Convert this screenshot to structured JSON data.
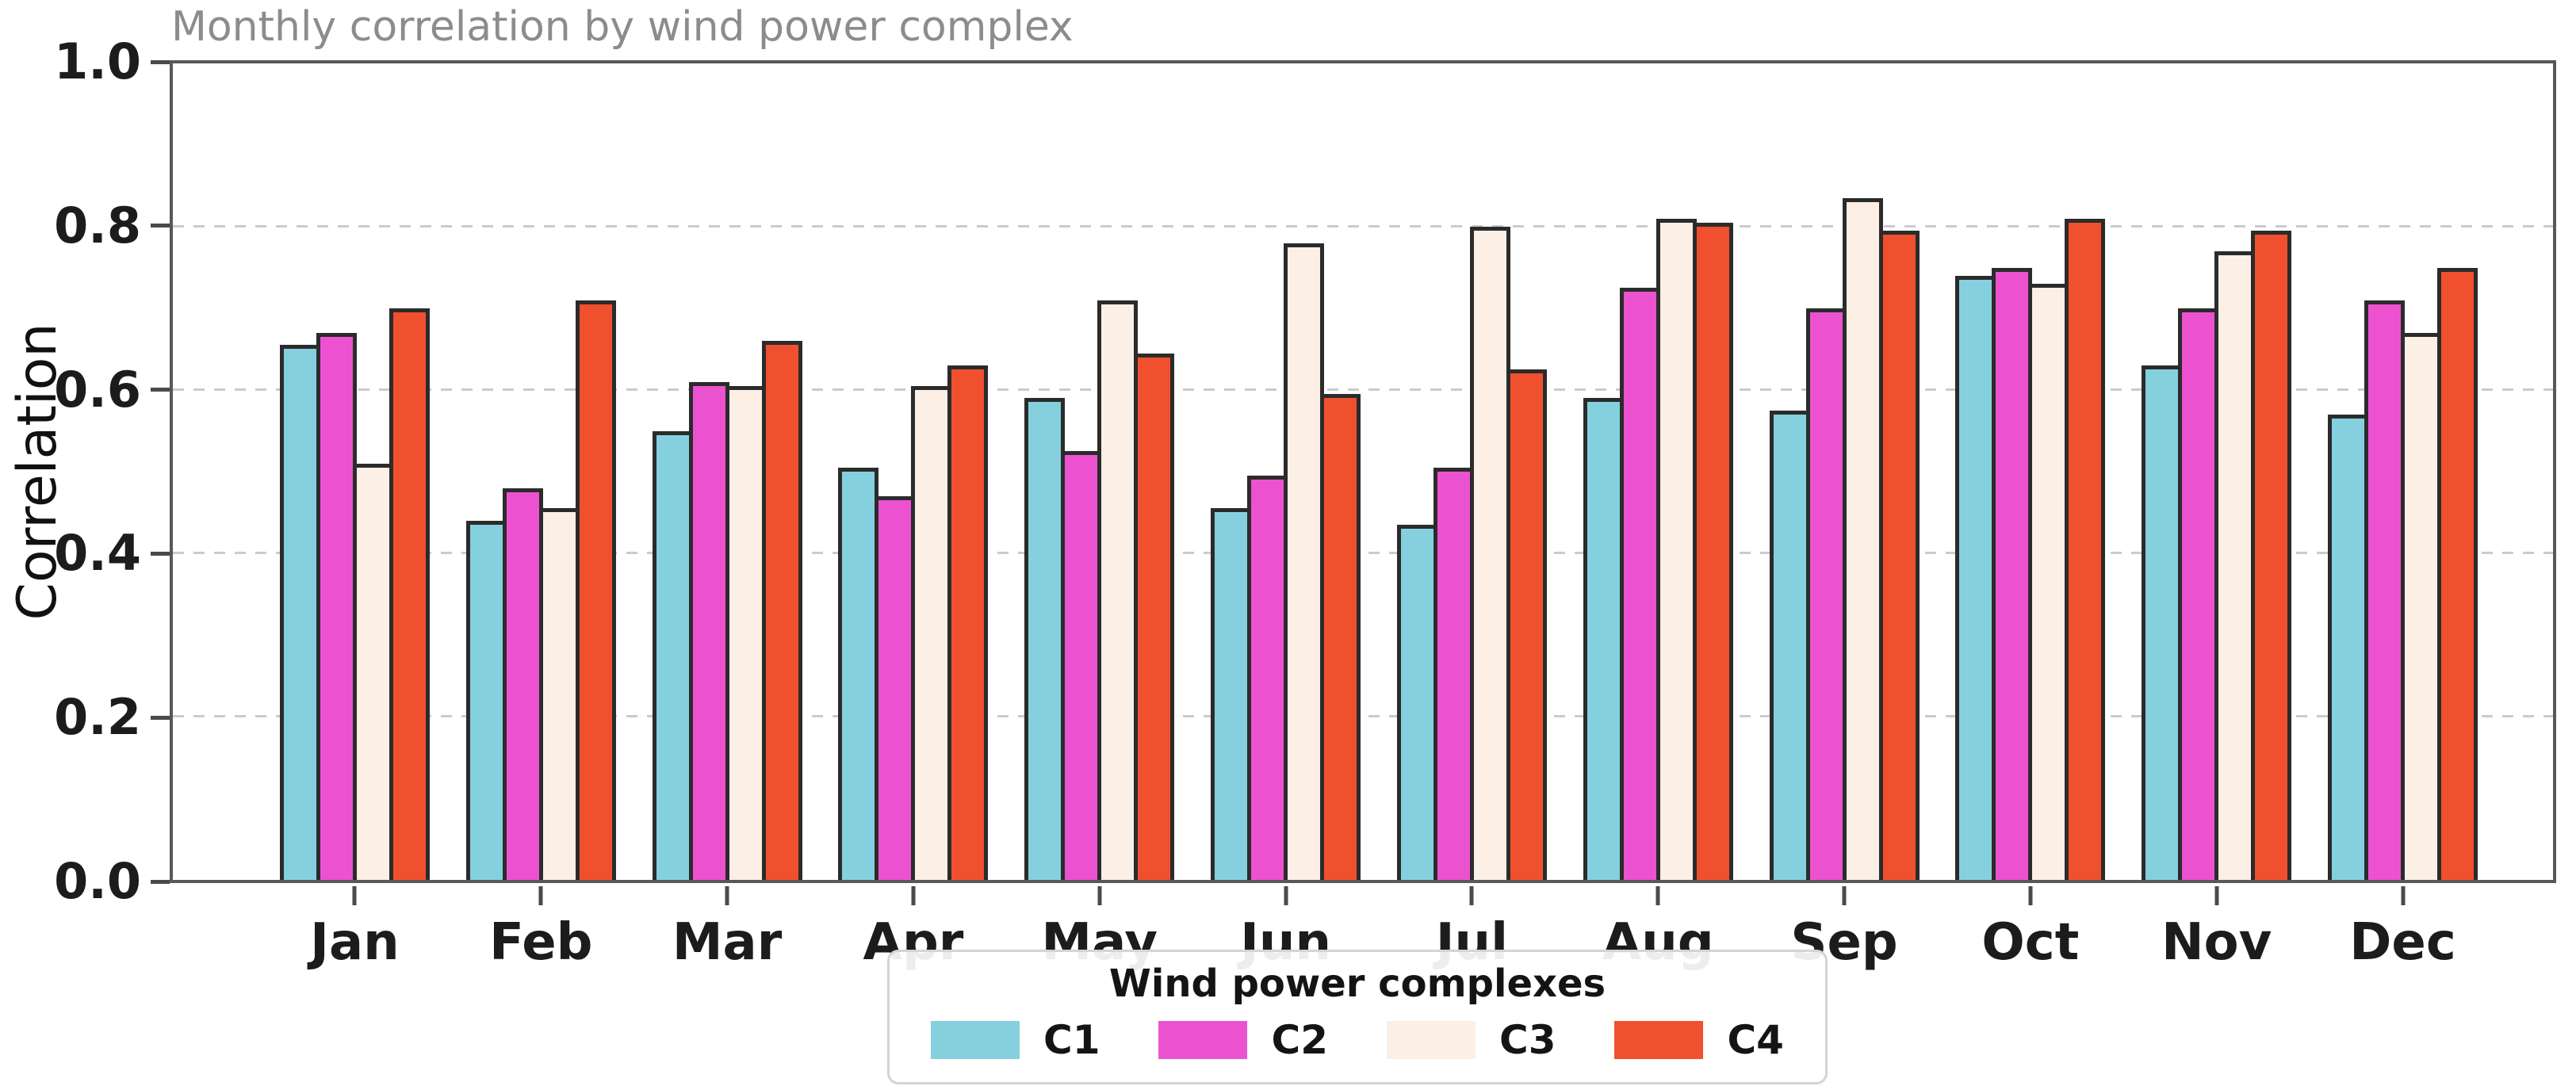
{
  "chart_data": {
    "type": "bar",
    "title": "Monthly correlation by wind power complex",
    "ylabel": "Correlation",
    "xlabel": "",
    "categories": [
      "Jan",
      "Feb",
      "Mar",
      "Apr",
      "May",
      "Jun",
      "Jul",
      "Aug",
      "Sep",
      "Oct",
      "Nov",
      "Dec"
    ],
    "series": [
      {
        "name": "C1",
        "color": "#85d0de",
        "values": [
          0.655,
          0.44,
          0.55,
          0.505,
          0.59,
          0.455,
          0.435,
          0.59,
          0.575,
          0.74,
          0.63,
          0.57
        ]
      },
      {
        "name": "C2",
        "color": "#ec52d0",
        "values": [
          0.67,
          0.48,
          0.61,
          0.47,
          0.525,
          0.495,
          0.505,
          0.725,
          0.7,
          0.75,
          0.7,
          0.71
        ]
      },
      {
        "name": "C3",
        "color": "#fbefe6",
        "values": [
          0.51,
          0.455,
          0.605,
          0.605,
          0.71,
          0.78,
          0.8,
          0.81,
          0.835,
          0.73,
          0.77,
          0.67
        ]
      },
      {
        "name": "C4",
        "color": "#f0502e",
        "values": [
          0.7,
          0.71,
          0.66,
          0.63,
          0.645,
          0.595,
          0.625,
          0.805,
          0.795,
          0.81,
          0.795,
          0.75
        ]
      }
    ],
    "ylim": [
      0.0,
      1.0
    ],
    "yticks": [
      0.0,
      0.2,
      0.4,
      0.6,
      0.8,
      1.0
    ],
    "ytick_labels": [
      "0.0",
      "0.2",
      "0.4",
      "0.6",
      "0.8",
      "1.0"
    ],
    "grid": "horizontal dashed gridlines at 0.2 intervals",
    "legend_title": "Wind power complexes",
    "legend_position": "bottom center",
    "colors": {
      "bar_edge": "#2b2b2b",
      "spine": "#58585a",
      "gridline": "#cbcbcb",
      "title_text": "#8c8c8c",
      "axis_text": "#1c1c1c",
      "legend_border": "#d4d4d4",
      "background": "#ffffff"
    }
  }
}
